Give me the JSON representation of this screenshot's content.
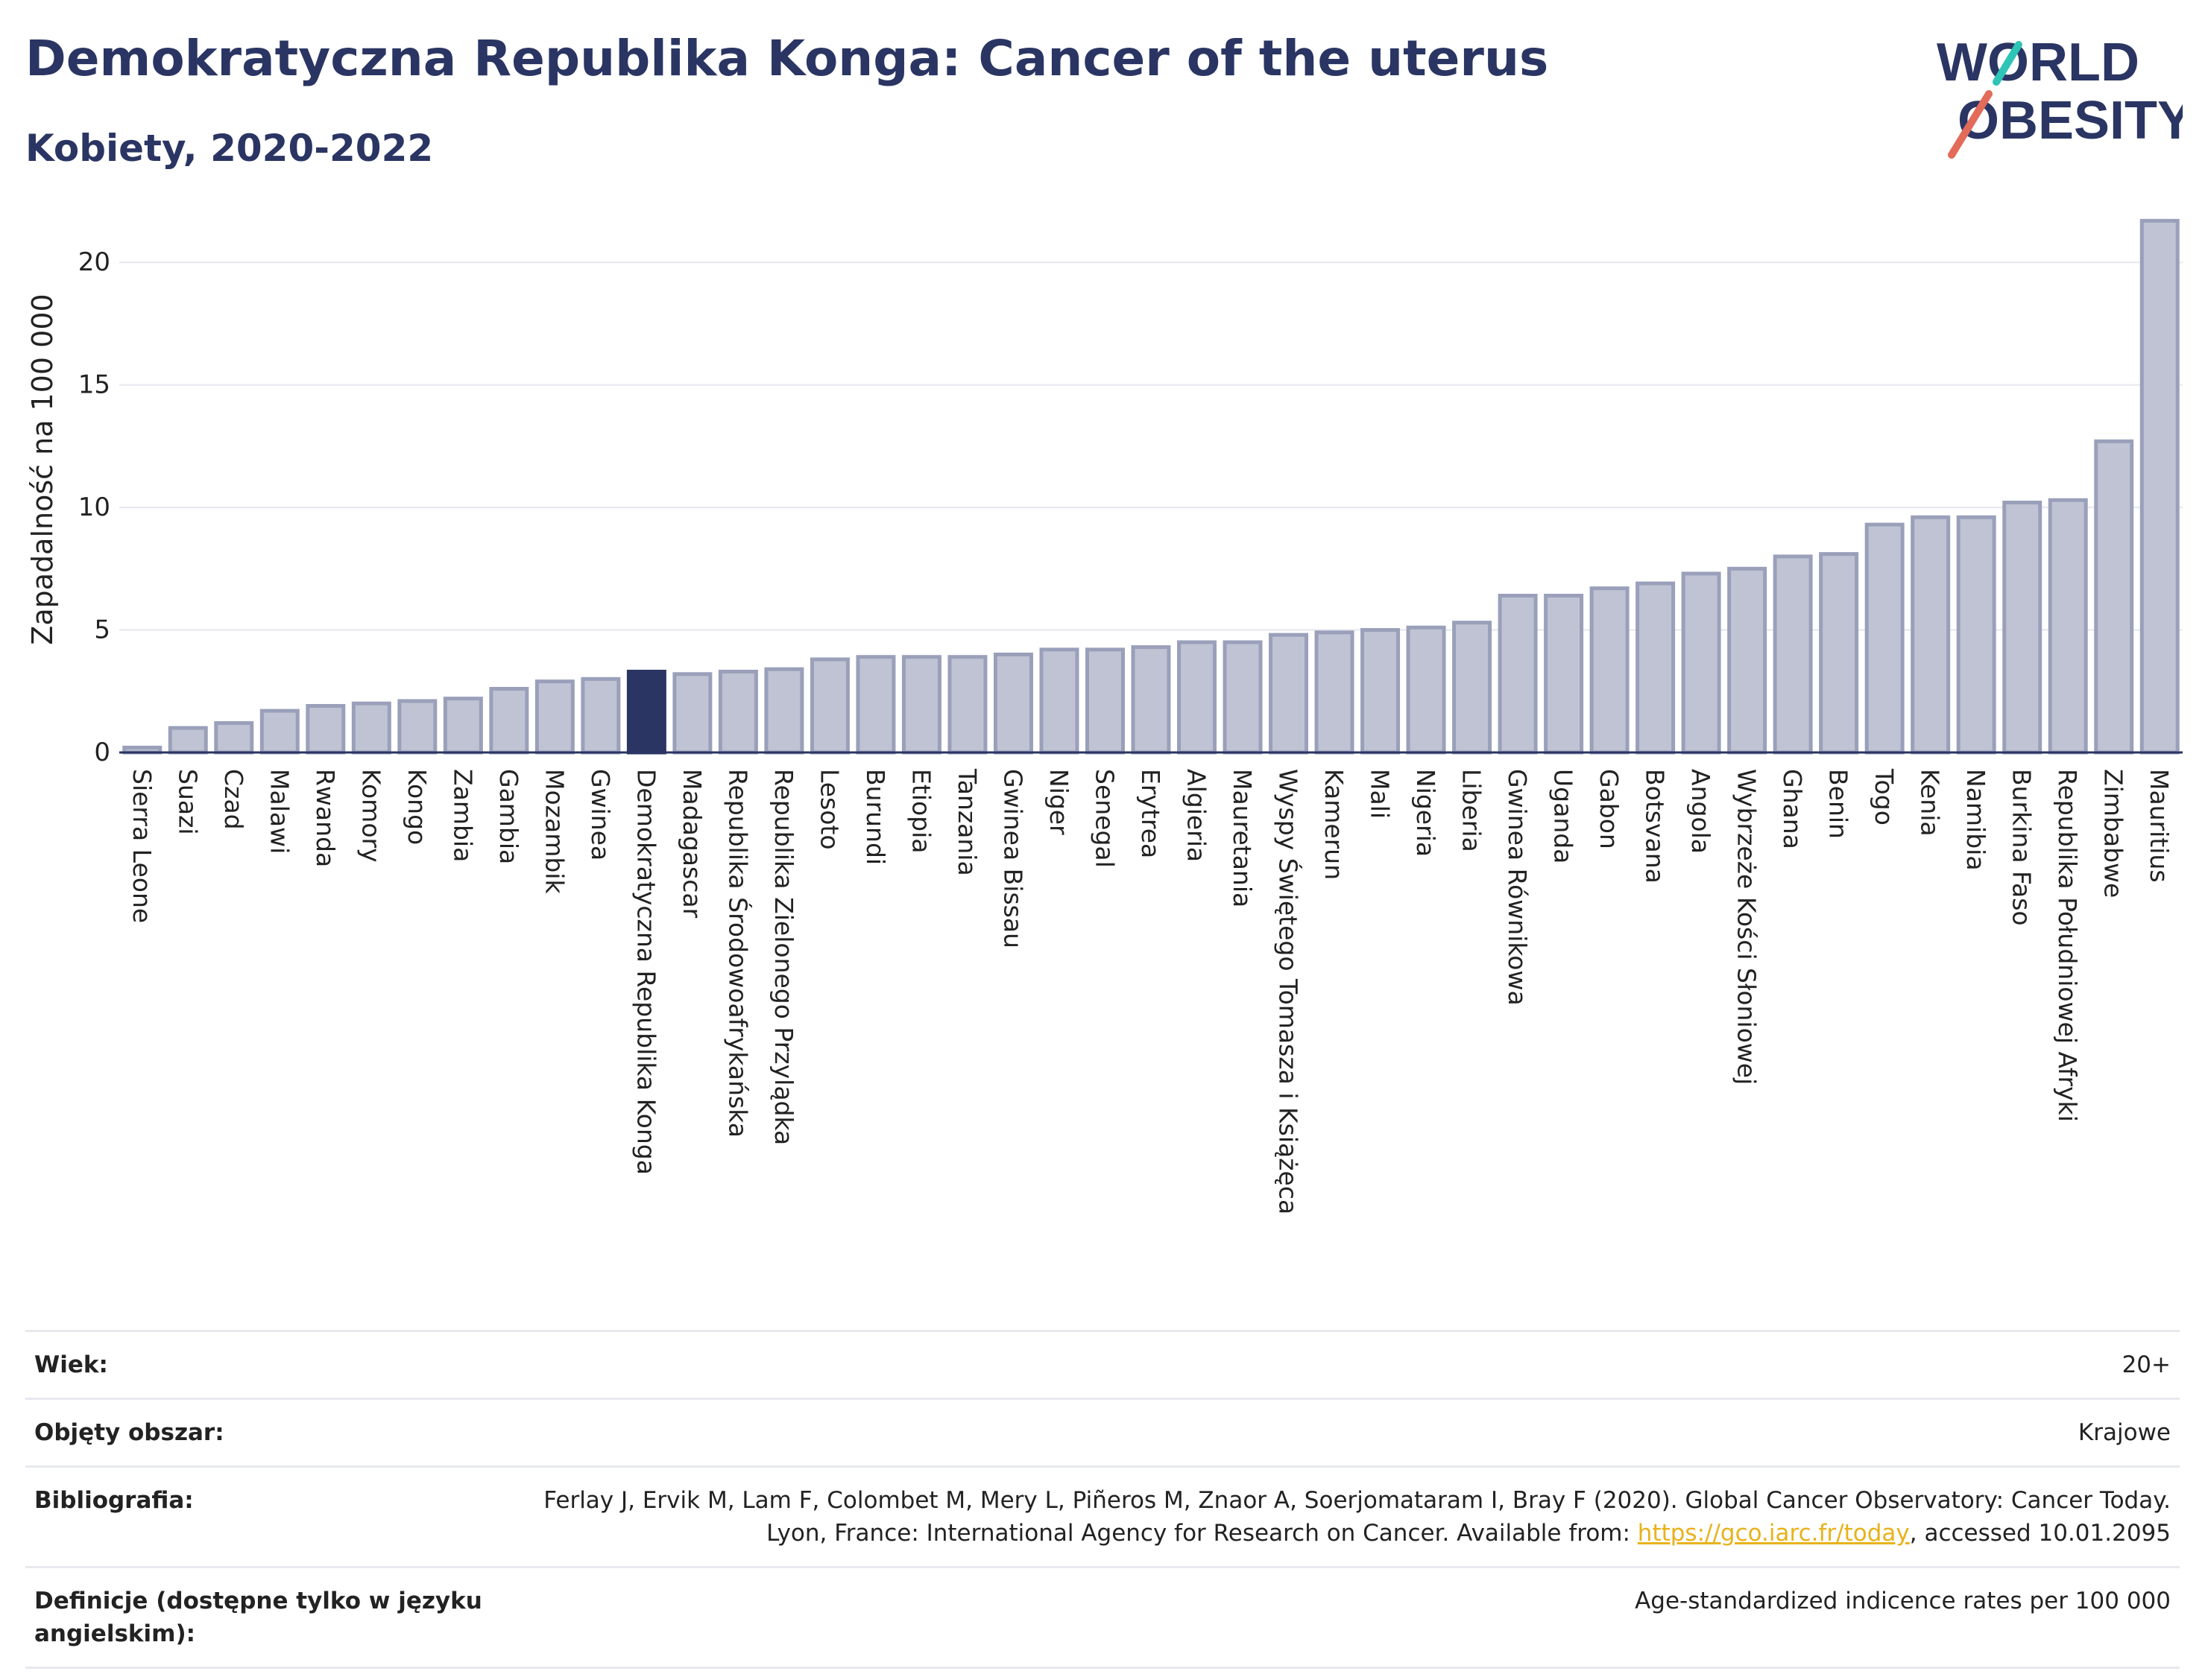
{
  "header": {
    "title": "Demokratyczna Republika Konga: Cancer of the uterus",
    "subtitle": "Kobiety, 2020-2022"
  },
  "logo": {
    "line1": "WORLD",
    "line2": "OBESITY"
  },
  "colors": {
    "bar": "#bfc3d3",
    "bar_stroke": "#9aa0ba",
    "highlight": "#2a3563",
    "title": "#2a3563",
    "link": "#e8b21a"
  },
  "chart_data": {
    "type": "bar",
    "ylabel": "Zapadalność na 100 000",
    "ylim": [
      0,
      22.5
    ],
    "yticks": [
      0,
      5,
      10,
      15,
      20
    ],
    "grid": true,
    "highlight": "Demokratyczna Republika Konga",
    "categories": [
      "Sierra Leone",
      "Suazi",
      "Czad",
      "Malawi",
      "Rwanda",
      "Komory",
      "Kongo",
      "Zambia",
      "Gambia",
      "Mozambik",
      "Gwinea",
      "Demokratyczna Republika Konga",
      "Madagascar",
      "Republika Środowoafrykańska",
      "Republika Zielonego Przylądka",
      "Lesoto",
      "Burundi",
      "Etiopia",
      "Tanzania",
      "Gwinea Bissau",
      "Niger",
      "Senegal",
      "Erytrea",
      "Algieria",
      "Mauretania",
      "Wyspy Świętego Tomasza i Książęca",
      "Kamerun",
      "Mali",
      "Nigeria",
      "Liberia",
      "Gwinea Równikowa",
      "Uganda",
      "Gabon",
      "Botsvana",
      "Angola",
      "Wybrzeże Kości Słoniowej",
      "Ghana",
      "Benin",
      "Togo",
      "Kenia",
      "Namibia",
      "Burkina Faso",
      "Republika Południowej Afryki",
      "Zimbabwe",
      "Mauritius"
    ],
    "values": [
      0.2,
      1.0,
      1.2,
      1.7,
      1.9,
      2.0,
      2.1,
      2.2,
      2.6,
      2.9,
      3.0,
      3.3,
      3.2,
      3.3,
      3.4,
      3.8,
      3.9,
      3.9,
      3.9,
      4.0,
      4.2,
      4.2,
      4.3,
      4.5,
      4.5,
      4.8,
      4.9,
      5.0,
      5.1,
      5.3,
      6.4,
      6.4,
      6.7,
      6.9,
      7.3,
      7.5,
      8.0,
      8.1,
      9.3,
      9.6,
      9.6,
      10.2,
      10.3,
      12.7,
      21.7
    ]
  },
  "meta": {
    "age_label": "Wiek:",
    "age_value": "20+",
    "area_label": "Objęty obszar:",
    "area_value": "Krajowe",
    "bib_label": "Bibliografia:",
    "bib_text_1": "Ferlay J, Ervik M, Lam F, Colombet M, Mery L, Piñeros M, Znaor A, Soerjomataram I, Bray F (2020). Global Cancer Observatory: Cancer Today. Lyon, France: International Agency for Research on Cancer. Available from: ",
    "bib_link": "https://gco.iarc.fr/today",
    "bib_text_2": ", accessed 10.01.2095",
    "def_label": "Definicje (dostępne tylko w języku angielskim):",
    "def_value": "Age-standardized indicence rates per 100 000"
  }
}
